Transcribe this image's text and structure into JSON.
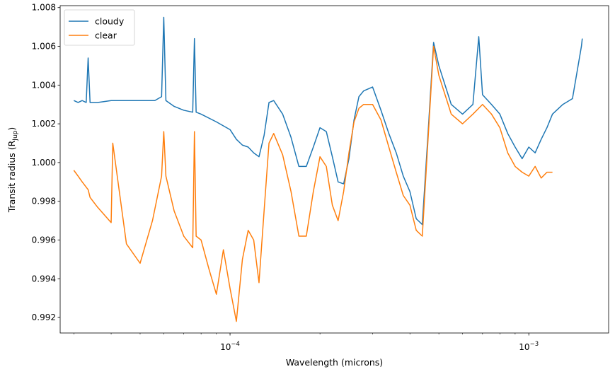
{
  "chart_data": {
    "type": "line",
    "title": "",
    "xlabel": "Wavelength (microns)",
    "ylabel": "Transit radius (R",
    "ylabel_sub": "Jup",
    "ylabel_close": ")",
    "xscale": "log",
    "xlim": [
      2.7e-05,
      0.00185
    ],
    "ylim": [
      0.9912,
      1.0081
    ],
    "grid": false,
    "legend_position": "upper-left",
    "xticks_major": [
      {
        "value": 0.0001,
        "base": "10",
        "exp": "−4"
      },
      {
        "value": 0.001,
        "base": "10",
        "exp": "−3"
      }
    ],
    "yticks": [
      {
        "value": 0.992,
        "label": "0.992"
      },
      {
        "value": 0.994,
        "label": "0.994"
      },
      {
        "value": 0.996,
        "label": "0.996"
      },
      {
        "value": 0.998,
        "label": "0.998"
      },
      {
        "value": 1.0,
        "label": "1.000"
      },
      {
        "value": 1.002,
        "label": "1.002"
      },
      {
        "value": 1.004,
        "label": "1.004"
      },
      {
        "value": 1.006,
        "label": "1.006"
      },
      {
        "value": 1.008,
        "label": "1.008"
      }
    ],
    "series": [
      {
        "name": "cloudy",
        "color": "#1f77b4",
        "x": [
          3e-05,
          3.1e-05,
          3.2e-05,
          3.3e-05,
          3.35e-05,
          3.4e-05,
          3.6e-05,
          4e-05,
          4.5e-05,
          5e-05,
          5.6e-05,
          5.9e-05,
          6e-05,
          6.1e-05,
          6.5e-05,
          7e-05,
          7.5e-05,
          7.6e-05,
          7.7e-05,
          8e-05,
          9e-05,
          0.0001,
          0.000105,
          0.00011,
          0.000115,
          0.00012,
          0.000125,
          0.00013,
          0.000135,
          0.00014,
          0.00015,
          0.00016,
          0.00017,
          0.00018,
          0.00019,
          0.0002,
          0.00021,
          0.00022,
          0.00023,
          0.00024,
          0.00025,
          0.00026,
          0.00027,
          0.00028,
          0.0003,
          0.00032,
          0.00034,
          0.00036,
          0.00038,
          0.0004,
          0.00042,
          0.00044,
          0.00046,
          0.00048,
          0.0005,
          0.00055,
          0.0006,
          0.00065,
          0.00068,
          0.0007,
          0.00075,
          0.0008,
          0.00085,
          0.0009,
          0.00095,
          0.001,
          0.00105,
          0.0011,
          0.00115,
          0.0012,
          0.0013,
          0.0014,
          0.0015,
          0.00151
        ],
        "values": [
          1.0032,
          1.0031,
          1.0032,
          1.0031,
          1.0054,
          1.0031,
          1.0031,
          1.0032,
          1.0032,
          1.0032,
          1.0032,
          1.0034,
          1.0075,
          1.0032,
          1.0029,
          1.0027,
          1.0026,
          1.0064,
          1.0026,
          1.0025,
          1.0021,
          1.0017,
          1.0012,
          1.0009,
          1.0008,
          1.0005,
          1.0003,
          1.0014,
          1.0031,
          1.0032,
          1.0025,
          1.0013,
          0.9998,
          0.9998,
          1.0008,
          1.0018,
          1.0016,
          1.0003,
          0.999,
          0.9989,
          1.0002,
          1.0022,
          1.0034,
          1.0037,
          1.0039,
          1.0027,
          1.0015,
          1.0005,
          0.9993,
          0.9985,
          0.9971,
          0.9968,
          1.0015,
          1.0062,
          1.005,
          1.003,
          1.0025,
          1.003,
          1.0065,
          1.0035,
          1.003,
          1.0025,
          1.0015,
          1.0008,
          1.0002,
          1.0008,
          1.0005,
          1.0012,
          1.0018,
          1.0025,
          1.003,
          1.0033,
          1.006,
          1.0064
        ]
      },
      {
        "name": "clear",
        "color": "#ff7f0e",
        "x": [
          3e-05,
          3.1e-05,
          3.2e-05,
          3.35e-05,
          3.4e-05,
          3.6e-05,
          4e-05,
          4.05e-05,
          4.5e-05,
          5e-05,
          5.5e-05,
          5.9e-05,
          6e-05,
          6.1e-05,
          6.5e-05,
          7e-05,
          7.5e-05,
          7.6e-05,
          7.7e-05,
          8e-05,
          8.5e-05,
          9e-05,
          9.5e-05,
          0.0001,
          0.000105,
          0.00011,
          0.000115,
          0.00012,
          0.000125,
          0.00013,
          0.000135,
          0.00014,
          0.00015,
          0.00016,
          0.00017,
          0.00018,
          0.00019,
          0.0002,
          0.00021,
          0.00022,
          0.00023,
          0.00024,
          0.00025,
          0.00026,
          0.00027,
          0.00028,
          0.0003,
          0.00032,
          0.00034,
          0.00036,
          0.00038,
          0.0004,
          0.00042,
          0.00044,
          0.00046,
          0.00048,
          0.0005,
          0.00055,
          0.0006,
          0.00065,
          0.0007,
          0.00075,
          0.0008,
          0.00085,
          0.0009,
          0.00095,
          0.001,
          0.00105,
          0.0011,
          0.00115,
          0.0012
        ],
        "values": [
          0.9996,
          0.9993,
          0.999,
          0.9986,
          0.9982,
          0.9977,
          0.9969,
          1.001,
          0.9958,
          0.9948,
          0.997,
          0.9993,
          1.0016,
          0.9993,
          0.9975,
          0.9962,
          0.9956,
          1.0016,
          0.9962,
          0.996,
          0.9945,
          0.9932,
          0.9955,
          0.9935,
          0.9918,
          0.995,
          0.9965,
          0.996,
          0.9938,
          0.9975,
          1.001,
          1.0015,
          1.0004,
          0.9985,
          0.9962,
          0.9962,
          0.9985,
          1.0003,
          0.9998,
          0.9978,
          0.997,
          0.9985,
          1.0005,
          1.0021,
          1.0028,
          1.003,
          1.003,
          1.0022,
          1.0008,
          0.9995,
          0.9983,
          0.9978,
          0.9965,
          0.9962,
          1.0012,
          1.006,
          1.0045,
          1.0025,
          1.002,
          1.0025,
          1.003,
          1.0025,
          1.0018,
          1.0005,
          0.9998,
          0.9995,
          0.9993,
          0.9998,
          0.9992,
          0.9995,
          0.9995
        ]
      }
    ]
  }
}
